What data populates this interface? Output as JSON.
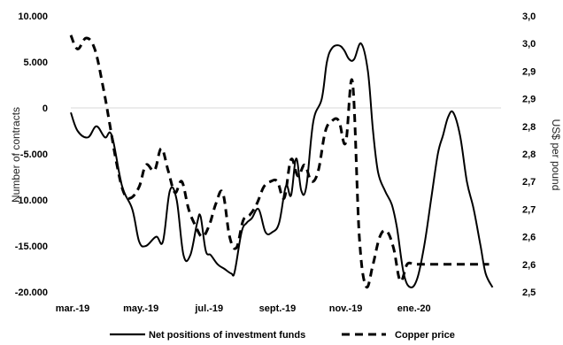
{
  "chart_data": {
    "type": "line",
    "title": "",
    "xlabel": "",
    "ylabel_left": "Number of contracts",
    "ylabel_right": "US$ per pound",
    "x_ticks": [
      "mar.-19",
      "may.-19",
      "jul.-19",
      "sept.-19",
      "nov.-19",
      "ene.-20"
    ],
    "left_axis": {
      "ylim": [
        -20000,
        10000
      ],
      "tick_values": [
        -20000,
        -15000,
        -10000,
        -5000,
        0,
        5000,
        10000
      ],
      "tick_labels": [
        "-20.000",
        "-15.000",
        "-10.000",
        "-5.000",
        "0",
        "5.000",
        "10.000"
      ]
    },
    "right_axis": {
      "ylim": [
        2.5,
        3.0
      ],
      "tick_values": [
        2.5,
        2.55,
        2.6,
        2.65,
        2.7,
        2.75,
        2.8,
        2.85,
        2.9,
        2.95,
        3.0
      ],
      "tick_labels": [
        "2,5",
        "2,6",
        "2,6",
        "2,7",
        "2,7",
        "2,8",
        "2,8",
        "2,9",
        "2,9",
        "3,0",
        "3,0"
      ]
    },
    "grid": false,
    "zero_line": true,
    "legend_position": "bottom",
    "series": [
      {
        "name": "Net positions of investment funds",
        "axis": "left",
        "style": "solid",
        "x": [
          0,
          0.2,
          0.5,
          0.75,
          1.0,
          1.2,
          1.5,
          1.8,
          2.0,
          2.2,
          2.5,
          2.7,
          2.9,
          3.1,
          3.3,
          3.5,
          3.7,
          3.8,
          3.95,
          4.1,
          4.3,
          4.5,
          4.7,
          4.8,
          5.0,
          5.15,
          5.3,
          5.5,
          5.7,
          5.9,
          6.1,
          6.3,
          6.45,
          6.6,
          6.75,
          6.9,
          7.1,
          7.35,
          7.5,
          7.65,
          7.85,
          8.0,
          8.15,
          8.3,
          8.5,
          8.7,
          8.85,
          9.0,
          9.2,
          9.4,
          9.55,
          9.75,
          9.95,
          10.15,
          10.35,
          10.55,
          10.75,
          10.9,
          11.05,
          11.2,
          11.4,
          11.6,
          11.8,
          12.0,
          12.15,
          12.35
        ],
        "values": [
          -500,
          -2500,
          -3200,
          -2000,
          -3200,
          -3000,
          -8500,
          -11000,
          -14500,
          -15000,
          -14000,
          -14500,
          -9000,
          -10000,
          -16000,
          -16000,
          -12500,
          -11800,
          -15500,
          -16000,
          -17000,
          -17500,
          -18000,
          -17800,
          -13500,
          -12500,
          -12000,
          -11000,
          -13500,
          -13500,
          -12500,
          -8500,
          -9500,
          -5500,
          -9000,
          -8500,
          -1500,
          1000,
          5000,
          6500,
          6800,
          6300,
          5300,
          5300,
          7000,
          4000,
          -2500,
          -7000,
          -9000,
          -10500,
          -13000,
          -18000,
          -19500,
          -18500,
          -15000,
          -10000,
          -5000,
          -3000,
          -1000,
          -500,
          -3000,
          -8000,
          -11000,
          -15000,
          -18000,
          -19500
        ],
        "x_end": 12.35
      },
      {
        "name": "Copper price",
        "axis": "right",
        "style": "dashed",
        "x": [
          0,
          0.2,
          0.45,
          0.7,
          0.95,
          1.15,
          1.35,
          1.55,
          1.75,
          2.0,
          2.2,
          2.45,
          2.65,
          2.85,
          3.05,
          3.25,
          3.45,
          3.65,
          3.85,
          4.05,
          4.25,
          4.45,
          4.65,
          4.85,
          5.05,
          5.25,
          5.45,
          5.65,
          5.85,
          6.05,
          6.25,
          6.45,
          6.65,
          6.85,
          7.05,
          7.25,
          7.45,
          7.65,
          7.85,
          8.05,
          8.25,
          8.45,
          8.65,
          8.85,
          9.05,
          9.25,
          9.45,
          9.65,
          9.85,
          10.05,
          10.25,
          10.45,
          10.65,
          10.85,
          11.05,
          11.25,
          11.45,
          11.65,
          11.85,
          12.05,
          12.25
        ],
        "values": [
          2.965,
          2.94,
          2.96,
          2.94,
          2.87,
          2.8,
          2.73,
          2.68,
          2.67,
          2.69,
          2.73,
          2.72,
          2.76,
          2.72,
          2.68,
          2.7,
          2.65,
          2.62,
          2.6,
          2.62,
          2.66,
          2.68,
          2.6,
          2.58,
          2.63,
          2.64,
          2.66,
          2.69,
          2.7,
          2.7,
          2.67,
          2.74,
          2.71,
          2.73,
          2.7,
          2.72,
          2.79,
          2.81,
          2.81,
          2.77,
          2.88,
          2.6,
          2.51,
          2.55,
          2.6,
          2.61,
          2.58,
          2.52,
          2.55,
          2.55,
          2.55,
          2.55,
          2.55,
          2.55,
          2.55,
          2.55,
          2.55,
          2.55,
          2.55,
          2.55,
          2.55
        ]
      }
    ]
  }
}
